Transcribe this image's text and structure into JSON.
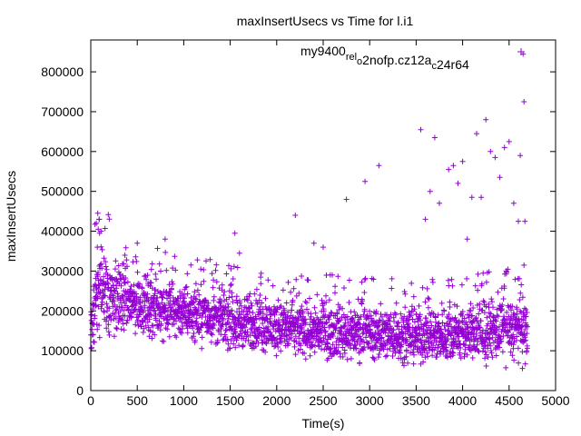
{
  "chart_data": {
    "type": "scatter",
    "title": "maxInsertUsecs vs Time for l.i1",
    "xlabel": "Time(s)",
    "ylabel": "maxInsertUsecs",
    "xlim": [
      0,
      5000
    ],
    "ylim": [
      0,
      880000
    ],
    "x_ticks": [
      0,
      500,
      1000,
      1500,
      2000,
      2500,
      3000,
      3500,
      4000,
      4500,
      5000
    ],
    "y_ticks": [
      0,
      100000,
      200000,
      300000,
      400000,
      500000,
      600000,
      700000,
      800000
    ],
    "grid": false,
    "legend_position": "top-right",
    "marker": "plus",
    "series": [
      {
        "name_parts": [
          {
            "text": "my9400",
            "sub": false
          },
          {
            "text": "rel",
            "sub": true
          },
          {
            "text": "o",
            "sub": true
          },
          {
            "text": "2nofp.cz12a",
            "sub": false
          },
          {
            "text": "c",
            "sub": true
          },
          {
            "text": "24r64",
            "sub": false
          }
        ],
        "color": "#9400d3",
        "point_count_estimate": 2600,
        "band_profile": [
          {
            "x": 0,
            "median": 160000,
            "spread": 60000
          },
          {
            "x": 50,
            "median": 230000,
            "spread": 90000
          },
          {
            "x": 100,
            "median": 250000,
            "spread": 90000
          },
          {
            "x": 500,
            "median": 215000,
            "spread": 60000
          },
          {
            "x": 1000,
            "median": 200000,
            "spread": 55000
          },
          {
            "x": 1500,
            "median": 175000,
            "spread": 55000
          },
          {
            "x": 2000,
            "median": 160000,
            "spread": 55000
          },
          {
            "x": 2500,
            "median": 150000,
            "spread": 55000
          },
          {
            "x": 3000,
            "median": 145000,
            "spread": 55000
          },
          {
            "x": 3500,
            "median": 140000,
            "spread": 55000
          },
          {
            "x": 4000,
            "median": 140000,
            "spread": 55000
          },
          {
            "x": 4500,
            "median": 155000,
            "spread": 60000
          },
          {
            "x": 4690,
            "median": 150000,
            "spread": 65000
          }
        ],
        "x_end": 4700,
        "outliers": [
          [
            60,
            420000
          ],
          [
            75,
            445000
          ],
          [
            80,
            405000
          ],
          [
            90,
            430000
          ],
          [
            95,
            395000
          ],
          [
            70,
            360000
          ],
          [
            110,
            400000
          ],
          [
            500,
            370000
          ],
          [
            800,
            380000
          ],
          [
            1550,
            395000
          ],
          [
            1600,
            345000
          ],
          [
            2200,
            440000
          ],
          [
            2400,
            370000
          ],
          [
            2500,
            360000
          ],
          [
            2750,
            480000
          ],
          [
            2950,
            525000
          ],
          [
            3100,
            565000
          ],
          [
            3550,
            655000
          ],
          [
            3700,
            635000
          ],
          [
            3650,
            500000
          ],
          [
            3750,
            470000
          ],
          [
            3850,
            555000
          ],
          [
            3900,
            565000
          ],
          [
            3950,
            520000
          ],
          [
            4000,
            575000
          ],
          [
            4050,
            380000
          ],
          [
            4100,
            485000
          ],
          [
            4150,
            645000
          ],
          [
            4200,
            485000
          ],
          [
            4250,
            680000
          ],
          [
            4300,
            600000
          ],
          [
            4350,
            585000
          ],
          [
            4400,
            535000
          ],
          [
            4450,
            610000
          ],
          [
            4500,
            625000
          ],
          [
            4550,
            470000
          ],
          [
            4600,
            425000
          ],
          [
            4620,
            590000
          ],
          [
            4650,
            845000
          ],
          [
            4660,
            725000
          ],
          [
            4670,
            425000
          ],
          [
            3600,
            430000
          ]
        ]
      }
    ]
  }
}
